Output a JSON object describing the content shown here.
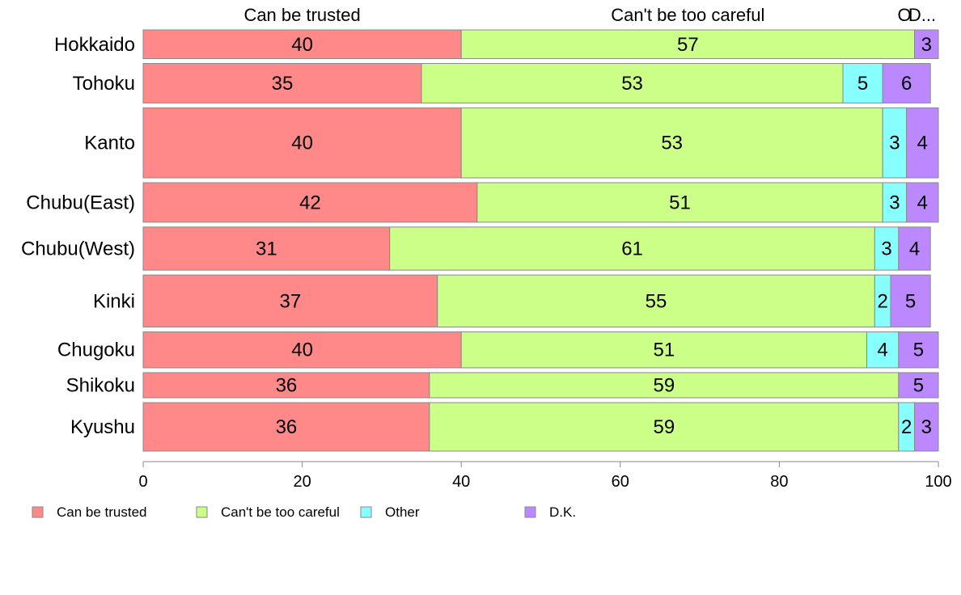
{
  "chart_data": {
    "type": "bar",
    "orientation": "horizontal",
    "stacked": true,
    "categories": [
      "Hokkaido",
      "Tohoku",
      "Kanto",
      "Chubu(East)",
      "Chubu(West)",
      "Kinki",
      "Chugoku",
      "Shikoku",
      "Kyushu"
    ],
    "series": [
      {
        "name": "Can be trusted",
        "color": "#ff8888",
        "values": [
          40,
          35,
          40,
          42,
          31,
          37,
          40,
          36,
          36
        ]
      },
      {
        "name": "Can't be too careful",
        "color": "#ccff88",
        "values": [
          57,
          53,
          53,
          51,
          61,
          55,
          51,
          59,
          59
        ]
      },
      {
        "name": "Other",
        "color": "#88ffff",
        "values": [
          0,
          5,
          3,
          3,
          3,
          2,
          4,
          0,
          2
        ]
      },
      {
        "name": "D.K.",
        "color": "#bb88ff",
        "values": [
          3,
          6,
          4,
          4,
          4,
          5,
          5,
          5,
          3
        ]
      }
    ],
    "bar_labels": [
      [
        "40",
        "57",
        "",
        "3"
      ],
      [
        "35",
        "53",
        "5",
        "6"
      ],
      [
        "40",
        "53",
        "3",
        "4"
      ],
      [
        "42",
        "51",
        "3",
        "4"
      ],
      [
        "31",
        "61",
        "3",
        "4"
      ],
      [
        "37",
        "55",
        "2",
        "5"
      ],
      [
        "40",
        "51",
        "4",
        "5"
      ],
      [
        "36",
        "59",
        "",
        "5"
      ],
      [
        "36",
        "59",
        "2",
        "3"
      ]
    ],
    "relative_bar_widths": [
      0.8,
      1.1,
      1.95,
      1.1,
      1.2,
      1.45,
      1.0,
      0.7,
      1.35
    ],
    "top_labels": [
      "Can be trusted",
      "Can't be too careful",
      "O",
      "D..."
    ],
    "xlim": [
      0,
      100
    ],
    "x_ticks": [
      0,
      20,
      40,
      60,
      80,
      100
    ],
    "grid": false,
    "legend": [
      "Can be trusted",
      "Can't be too careful",
      "Other",
      "D.K."
    ],
    "legend_position": "bottom"
  }
}
